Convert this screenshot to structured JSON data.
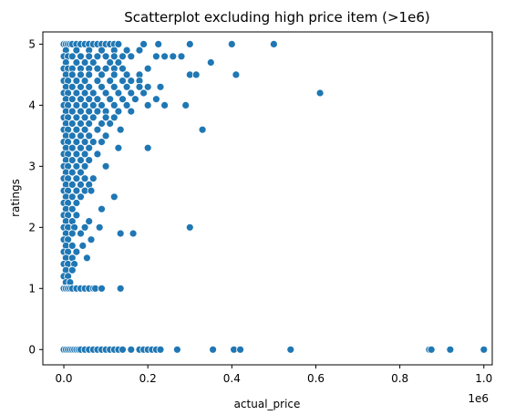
{
  "chart_data": {
    "type": "scatter",
    "title": "Scatterplot excluding high price item (>1e6)",
    "xlabel": "actual_price",
    "ylabel": "ratings",
    "x_offset_label": "1e6",
    "xlim": [
      -0.05,
      1.02
    ],
    "ylim": [
      -0.25,
      5.2
    ],
    "x_ticks": [
      0.0,
      0.2,
      0.4,
      0.6,
      0.8,
      1.0
    ],
    "x_tick_labels": [
      "0.0",
      "0.2",
      "0.4",
      "0.6",
      "0.8",
      "1.0"
    ],
    "y_ticks": [
      0,
      1,
      2,
      3,
      4,
      5
    ],
    "y_tick_labels": [
      "0",
      "1",
      "2",
      "3",
      "4",
      "5"
    ],
    "grid": false,
    "marker_color": "#1f77b4",
    "marker_edge_color": "#ffffff",
    "x_units": "millions",
    "points": [
      [
        0.0,
        5.0
      ],
      [
        0.005,
        5.0
      ],
      [
        0.01,
        5.0
      ],
      [
        0.015,
        5.0
      ],
      [
        0.02,
        5.0
      ],
      [
        0.03,
        5.0
      ],
      [
        0.04,
        5.0
      ],
      [
        0.05,
        5.0
      ],
      [
        0.06,
        5.0
      ],
      [
        0.07,
        5.0
      ],
      [
        0.08,
        5.0
      ],
      [
        0.09,
        5.0
      ],
      [
        0.1,
        5.0
      ],
      [
        0.11,
        5.0
      ],
      [
        0.12,
        5.0
      ],
      [
        0.13,
        5.0
      ],
      [
        0.19,
        5.0
      ],
      [
        0.225,
        5.0
      ],
      [
        0.3,
        5.0
      ],
      [
        0.4,
        5.0
      ],
      [
        0.5,
        5.0
      ],
      [
        0.005,
        4.9
      ],
      [
        0.03,
        4.9
      ],
      [
        0.06,
        4.9
      ],
      [
        0.09,
        4.9
      ],
      [
        0.12,
        4.9
      ],
      [
        0.15,
        4.9
      ],
      [
        0.18,
        4.9
      ],
      [
        0.0,
        4.8
      ],
      [
        0.01,
        4.8
      ],
      [
        0.02,
        4.8
      ],
      [
        0.04,
        4.8
      ],
      [
        0.06,
        4.8
      ],
      [
        0.08,
        4.8
      ],
      [
        0.1,
        4.8
      ],
      [
        0.12,
        4.8
      ],
      [
        0.14,
        4.8
      ],
      [
        0.16,
        4.8
      ],
      [
        0.22,
        4.8
      ],
      [
        0.24,
        4.8
      ],
      [
        0.26,
        4.8
      ],
      [
        0.28,
        4.8
      ],
      [
        0.005,
        4.7
      ],
      [
        0.03,
        4.7
      ],
      [
        0.05,
        4.7
      ],
      [
        0.07,
        4.7
      ],
      [
        0.11,
        4.7
      ],
      [
        0.13,
        4.7
      ],
      [
        0.35,
        4.7
      ],
      [
        0.0,
        4.6
      ],
      [
        0.01,
        4.6
      ],
      [
        0.02,
        4.6
      ],
      [
        0.04,
        4.6
      ],
      [
        0.06,
        4.6
      ],
      [
        0.08,
        4.6
      ],
      [
        0.1,
        4.6
      ],
      [
        0.12,
        4.6
      ],
      [
        0.14,
        4.6
      ],
      [
        0.2,
        4.6
      ],
      [
        0.005,
        4.5
      ],
      [
        0.02,
        4.5
      ],
      [
        0.04,
        4.5
      ],
      [
        0.06,
        4.5
      ],
      [
        0.09,
        4.5
      ],
      [
        0.12,
        4.5
      ],
      [
        0.15,
        4.5
      ],
      [
        0.18,
        4.5
      ],
      [
        0.3,
        4.5
      ],
      [
        0.315,
        4.5
      ],
      [
        0.41,
        4.5
      ],
      [
        0.0,
        4.4
      ],
      [
        0.01,
        4.4
      ],
      [
        0.03,
        4.4
      ],
      [
        0.05,
        4.4
      ],
      [
        0.08,
        4.4
      ],
      [
        0.11,
        4.4
      ],
      [
        0.14,
        4.4
      ],
      [
        0.16,
        4.4
      ],
      [
        0.18,
        4.4
      ],
      [
        0.005,
        4.3
      ],
      [
        0.02,
        4.3
      ],
      [
        0.04,
        4.3
      ],
      [
        0.06,
        4.3
      ],
      [
        0.09,
        4.3
      ],
      [
        0.12,
        4.3
      ],
      [
        0.15,
        4.3
      ],
      [
        0.18,
        4.3
      ],
      [
        0.2,
        4.3
      ],
      [
        0.23,
        4.3
      ],
      [
        0.0,
        4.2
      ],
      [
        0.01,
        4.2
      ],
      [
        0.03,
        4.2
      ],
      [
        0.05,
        4.2
      ],
      [
        0.07,
        4.2
      ],
      [
        0.1,
        4.2
      ],
      [
        0.13,
        4.2
      ],
      [
        0.16,
        4.2
      ],
      [
        0.19,
        4.2
      ],
      [
        0.61,
        4.2
      ],
      [
        0.005,
        4.1
      ],
      [
        0.02,
        4.1
      ],
      [
        0.04,
        4.1
      ],
      [
        0.06,
        4.1
      ],
      [
        0.08,
        4.1
      ],
      [
        0.11,
        4.1
      ],
      [
        0.14,
        4.1
      ],
      [
        0.17,
        4.1
      ],
      [
        0.22,
        4.1
      ],
      [
        0.0,
        4.0
      ],
      [
        0.01,
        4.0
      ],
      [
        0.03,
        4.0
      ],
      [
        0.05,
        4.0
      ],
      [
        0.07,
        4.0
      ],
      [
        0.09,
        4.0
      ],
      [
        0.12,
        4.0
      ],
      [
        0.15,
        4.0
      ],
      [
        0.2,
        4.0
      ],
      [
        0.24,
        4.0
      ],
      [
        0.29,
        4.0
      ],
      [
        0.005,
        3.9
      ],
      [
        0.02,
        3.9
      ],
      [
        0.04,
        3.9
      ],
      [
        0.06,
        3.9
      ],
      [
        0.08,
        3.9
      ],
      [
        0.1,
        3.9
      ],
      [
        0.13,
        3.9
      ],
      [
        0.16,
        3.9
      ],
      [
        0.0,
        3.8
      ],
      [
        0.01,
        3.8
      ],
      [
        0.03,
        3.8
      ],
      [
        0.05,
        3.8
      ],
      [
        0.07,
        3.8
      ],
      [
        0.1,
        3.8
      ],
      [
        0.12,
        3.8
      ],
      [
        0.005,
        3.7
      ],
      [
        0.02,
        3.7
      ],
      [
        0.04,
        3.7
      ],
      [
        0.06,
        3.7
      ],
      [
        0.09,
        3.7
      ],
      [
        0.11,
        3.7
      ],
      [
        0.0,
        3.6
      ],
      [
        0.01,
        3.6
      ],
      [
        0.03,
        3.6
      ],
      [
        0.05,
        3.6
      ],
      [
        0.08,
        3.6
      ],
      [
        0.135,
        3.6
      ],
      [
        0.33,
        3.6
      ],
      [
        0.005,
        3.5
      ],
      [
        0.02,
        3.5
      ],
      [
        0.04,
        3.5
      ],
      [
        0.06,
        3.5
      ],
      [
        0.1,
        3.5
      ],
      [
        0.0,
        3.4
      ],
      [
        0.01,
        3.4
      ],
      [
        0.03,
        3.4
      ],
      [
        0.05,
        3.4
      ],
      [
        0.07,
        3.4
      ],
      [
        0.09,
        3.4
      ],
      [
        0.005,
        3.3
      ],
      [
        0.02,
        3.3
      ],
      [
        0.04,
        3.3
      ],
      [
        0.06,
        3.3
      ],
      [
        0.13,
        3.3
      ],
      [
        0.2,
        3.3
      ],
      [
        0.0,
        3.2
      ],
      [
        0.01,
        3.2
      ],
      [
        0.03,
        3.2
      ],
      [
        0.05,
        3.2
      ],
      [
        0.08,
        3.2
      ],
      [
        0.005,
        3.1
      ],
      [
        0.02,
        3.1
      ],
      [
        0.04,
        3.1
      ],
      [
        0.06,
        3.1
      ],
      [
        0.0,
        3.0
      ],
      [
        0.01,
        3.0
      ],
      [
        0.03,
        3.0
      ],
      [
        0.05,
        3.0
      ],
      [
        0.1,
        3.0
      ],
      [
        0.005,
        2.9
      ],
      [
        0.02,
        2.9
      ],
      [
        0.04,
        2.9
      ],
      [
        0.0,
        2.8
      ],
      [
        0.01,
        2.8
      ],
      [
        0.03,
        2.8
      ],
      [
        0.05,
        2.8
      ],
      [
        0.07,
        2.8
      ],
      [
        0.005,
        2.7
      ],
      [
        0.02,
        2.7
      ],
      [
        0.04,
        2.7
      ],
      [
        0.06,
        2.7
      ],
      [
        0.0,
        2.6
      ],
      [
        0.01,
        2.6
      ],
      [
        0.03,
        2.6
      ],
      [
        0.05,
        2.6
      ],
      [
        0.065,
        2.6
      ],
      [
        0.005,
        2.5
      ],
      [
        0.02,
        2.5
      ],
      [
        0.04,
        2.5
      ],
      [
        0.12,
        2.5
      ],
      [
        0.0,
        2.4
      ],
      [
        0.01,
        2.4
      ],
      [
        0.03,
        2.4
      ],
      [
        0.005,
        2.3
      ],
      [
        0.02,
        2.3
      ],
      [
        0.09,
        2.3
      ],
      [
        0.0,
        2.2
      ],
      [
        0.01,
        2.2
      ],
      [
        0.03,
        2.2
      ],
      [
        0.005,
        2.1
      ],
      [
        0.02,
        2.1
      ],
      [
        0.06,
        2.1
      ],
      [
        0.0,
        2.0
      ],
      [
        0.01,
        2.0
      ],
      [
        0.025,
        2.0
      ],
      [
        0.05,
        2.0
      ],
      [
        0.085,
        2.0
      ],
      [
        0.3,
        2.0
      ],
      [
        0.005,
        1.9
      ],
      [
        0.02,
        1.9
      ],
      [
        0.04,
        1.9
      ],
      [
        0.135,
        1.9
      ],
      [
        0.165,
        1.9
      ],
      [
        0.0,
        1.8
      ],
      [
        0.01,
        1.8
      ],
      [
        0.065,
        1.8
      ],
      [
        0.005,
        1.7
      ],
      [
        0.02,
        1.7
      ],
      [
        0.045,
        1.7
      ],
      [
        0.0,
        1.6
      ],
      [
        0.01,
        1.6
      ],
      [
        0.03,
        1.6
      ],
      [
        0.005,
        1.5
      ],
      [
        0.02,
        1.5
      ],
      [
        0.055,
        1.5
      ],
      [
        0.0,
        1.4
      ],
      [
        0.01,
        1.4
      ],
      [
        0.025,
        1.4
      ],
      [
        0.005,
        1.3
      ],
      [
        0.02,
        1.3
      ],
      [
        0.0,
        1.2
      ],
      [
        0.01,
        1.2
      ],
      [
        0.005,
        1.1
      ],
      [
        0.015,
        1.1
      ],
      [
        0.0,
        1.0
      ],
      [
        0.005,
        1.0
      ],
      [
        0.01,
        1.0
      ],
      [
        0.015,
        1.0
      ],
      [
        0.02,
        1.0
      ],
      [
        0.03,
        1.0
      ],
      [
        0.04,
        1.0
      ],
      [
        0.05,
        1.0
      ],
      [
        0.06,
        1.0
      ],
      [
        0.07,
        1.0
      ],
      [
        0.075,
        1.0
      ],
      [
        0.09,
        1.0
      ],
      [
        0.135,
        1.0
      ],
      [
        0.0,
        0.0
      ],
      [
        0.005,
        0.0
      ],
      [
        0.01,
        0.0
      ],
      [
        0.015,
        0.0
      ],
      [
        0.02,
        0.0
      ],
      [
        0.025,
        0.0
      ],
      [
        0.03,
        0.0
      ],
      [
        0.035,
        0.0
      ],
      [
        0.04,
        0.0
      ],
      [
        0.05,
        0.0
      ],
      [
        0.06,
        0.0
      ],
      [
        0.07,
        0.0
      ],
      [
        0.08,
        0.0
      ],
      [
        0.09,
        0.0
      ],
      [
        0.1,
        0.0
      ],
      [
        0.11,
        0.0
      ],
      [
        0.12,
        0.0
      ],
      [
        0.13,
        0.0
      ],
      [
        0.14,
        0.0
      ],
      [
        0.16,
        0.0
      ],
      [
        0.18,
        0.0
      ],
      [
        0.19,
        0.0
      ],
      [
        0.2,
        0.0
      ],
      [
        0.21,
        0.0
      ],
      [
        0.22,
        0.0
      ],
      [
        0.23,
        0.0
      ],
      [
        0.27,
        0.0
      ],
      [
        0.355,
        0.0
      ],
      [
        0.405,
        0.0
      ],
      [
        0.42,
        0.0
      ],
      [
        0.54,
        0.0
      ],
      [
        0.87,
        0.0
      ],
      [
        0.875,
        0.0
      ],
      [
        0.92,
        0.0
      ],
      [
        1.0,
        0.0
      ]
    ]
  }
}
